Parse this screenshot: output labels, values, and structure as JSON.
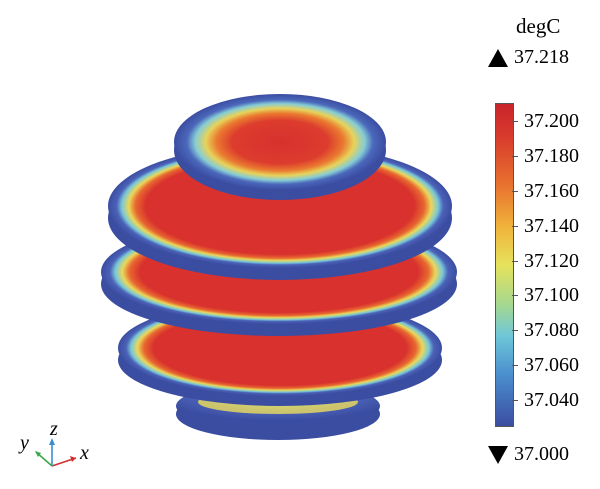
{
  "legend": {
    "unit": "degC",
    "max_label": "37.218",
    "min_label": "37.000",
    "ticks": [
      {
        "label": "37.200",
        "value": 37.2
      },
      {
        "label": "37.180",
        "value": 37.18
      },
      {
        "label": "37.160",
        "value": 37.16
      },
      {
        "label": "37.140",
        "value": 37.14
      },
      {
        "label": "37.120",
        "value": 37.12
      },
      {
        "label": "37.100",
        "value": 37.1
      },
      {
        "label": "37.080",
        "value": 37.08
      },
      {
        "label": "37.060",
        "value": 37.06
      },
      {
        "label": "37.040",
        "value": 37.04
      }
    ],
    "range": [
      37.025,
      37.21
    ],
    "colors": {
      "high": "#c8242b",
      "mid": "#e6e25c",
      "low": "#3b4da1"
    }
  },
  "axes_triad": {
    "x": "x",
    "y": "y",
    "z": "z"
  },
  "colors": {
    "edge": "#3b4da1",
    "core": "#d8312e"
  }
}
